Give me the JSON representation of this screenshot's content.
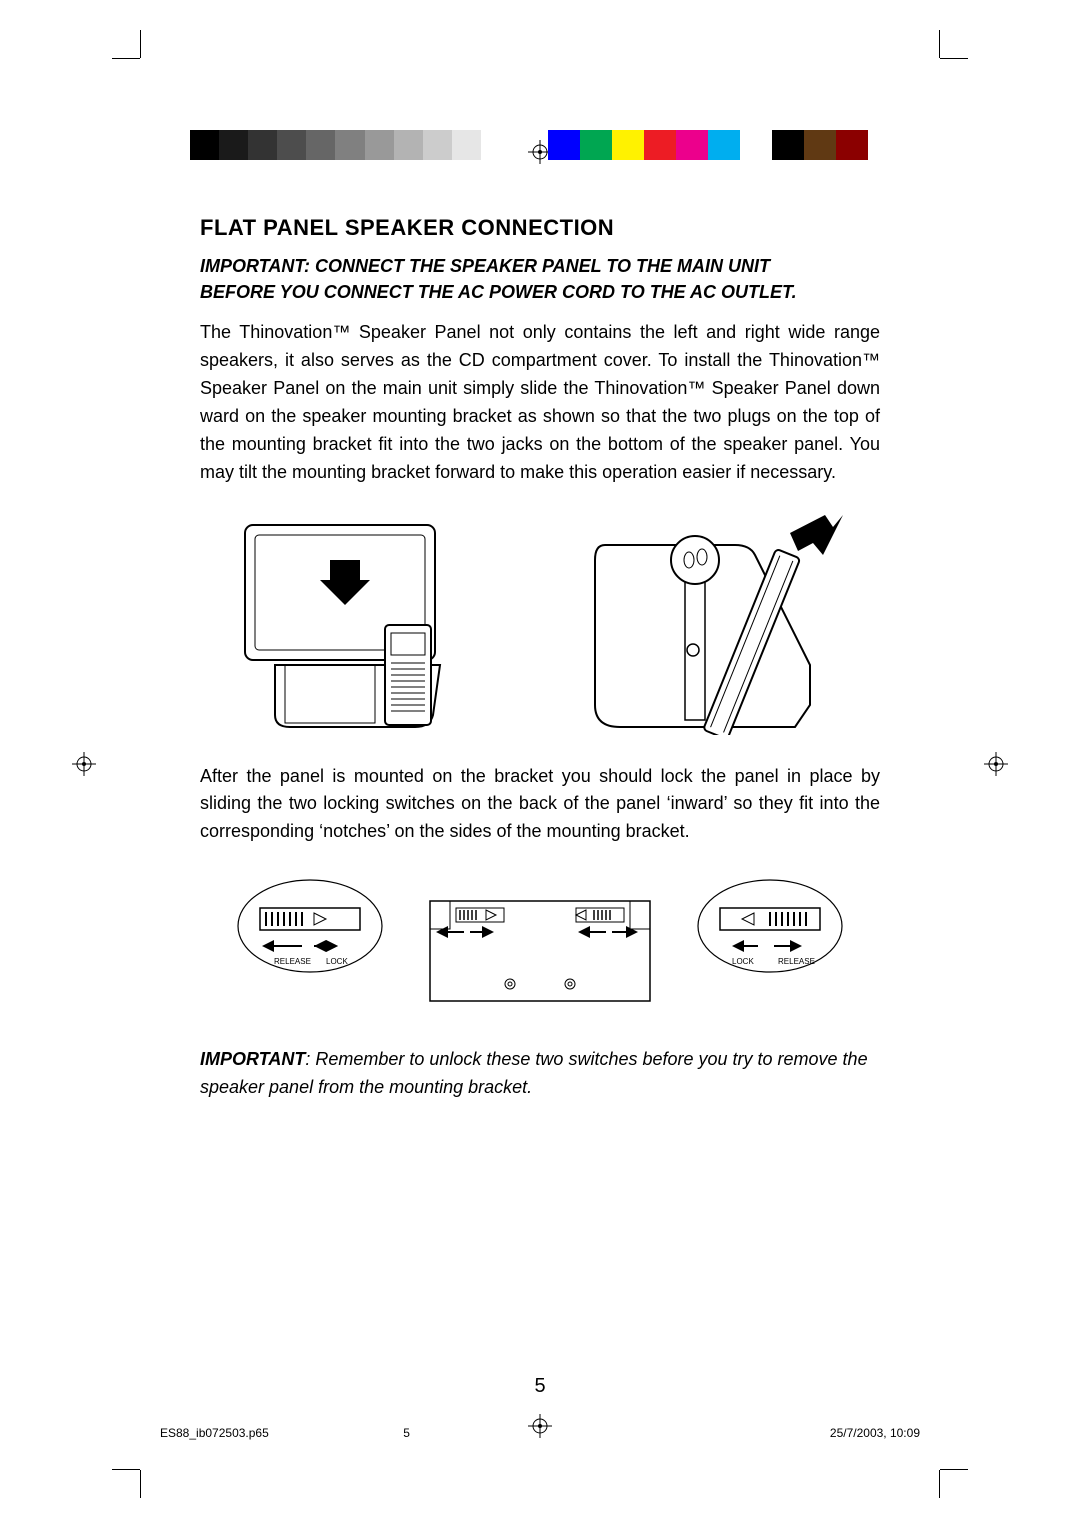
{
  "colors": {
    "gray_swatches": [
      "#000000",
      "#1a1a1a",
      "#333333",
      "#4d4d4d",
      "#666666",
      "#808080",
      "#999999",
      "#b3b3b3",
      "#cccccc",
      "#e6e6e6",
      "#ffffff"
    ],
    "color_swatches": [
      "#0000ff",
      "#00a651",
      "#fff200",
      "#ed1c24",
      "#ec008c",
      "#00aeef",
      "#ffffff",
      "#000000",
      "#603913",
      "#8b0000"
    ],
    "text": "#000000",
    "background": "#ffffff"
  },
  "typography": {
    "body_fontsize": 18,
    "heading_fontsize": 22,
    "footer_fontsize": 12
  },
  "heading": "FLAT PANEL SPEAKER CONNECTION",
  "important_line1": "IMPORTANT: CONNECT THE SPEAKER PANEL TO THE MAIN UNIT",
  "important_line2": "BEFORE YOU CONNECT THE AC POWER CORD TO THE AC OUTLET.",
  "para1": "The Thinovation™ Speaker Panel not only contains the left and right wide range speakers, it also serves as the CD compartment cover. To install the Thinovation™ Speaker Panel on the main unit simply slide the Thinovation™ Speaker Panel down ward on the speaker mounting bracket as shown so that the two plugs on the top of the mounting bracket fit into the two jacks on the bottom of the speaker panel. You may tilt the mounting bracket forward to make this operation easier if necessary.",
  "para2": "After the panel is mounted on the bracket you should lock the panel in place by sliding the two locking switches on the back of the panel ‘inward’ so they fit into the corresponding ‘notches’ on the sides of the mounting bracket.",
  "note_lead": "IMPORTANT",
  "note_rest": ": Remember to unlock these two switches before you try to remove the speaker panel from the mounting bracket.",
  "lock_labels": {
    "release": "RELEASE",
    "lock": "LOCK"
  },
  "page_number": "5",
  "footer": {
    "file": "ES88_ib072503.p65",
    "page": "5",
    "timestamp": "25/7/2003, 10:09"
  }
}
